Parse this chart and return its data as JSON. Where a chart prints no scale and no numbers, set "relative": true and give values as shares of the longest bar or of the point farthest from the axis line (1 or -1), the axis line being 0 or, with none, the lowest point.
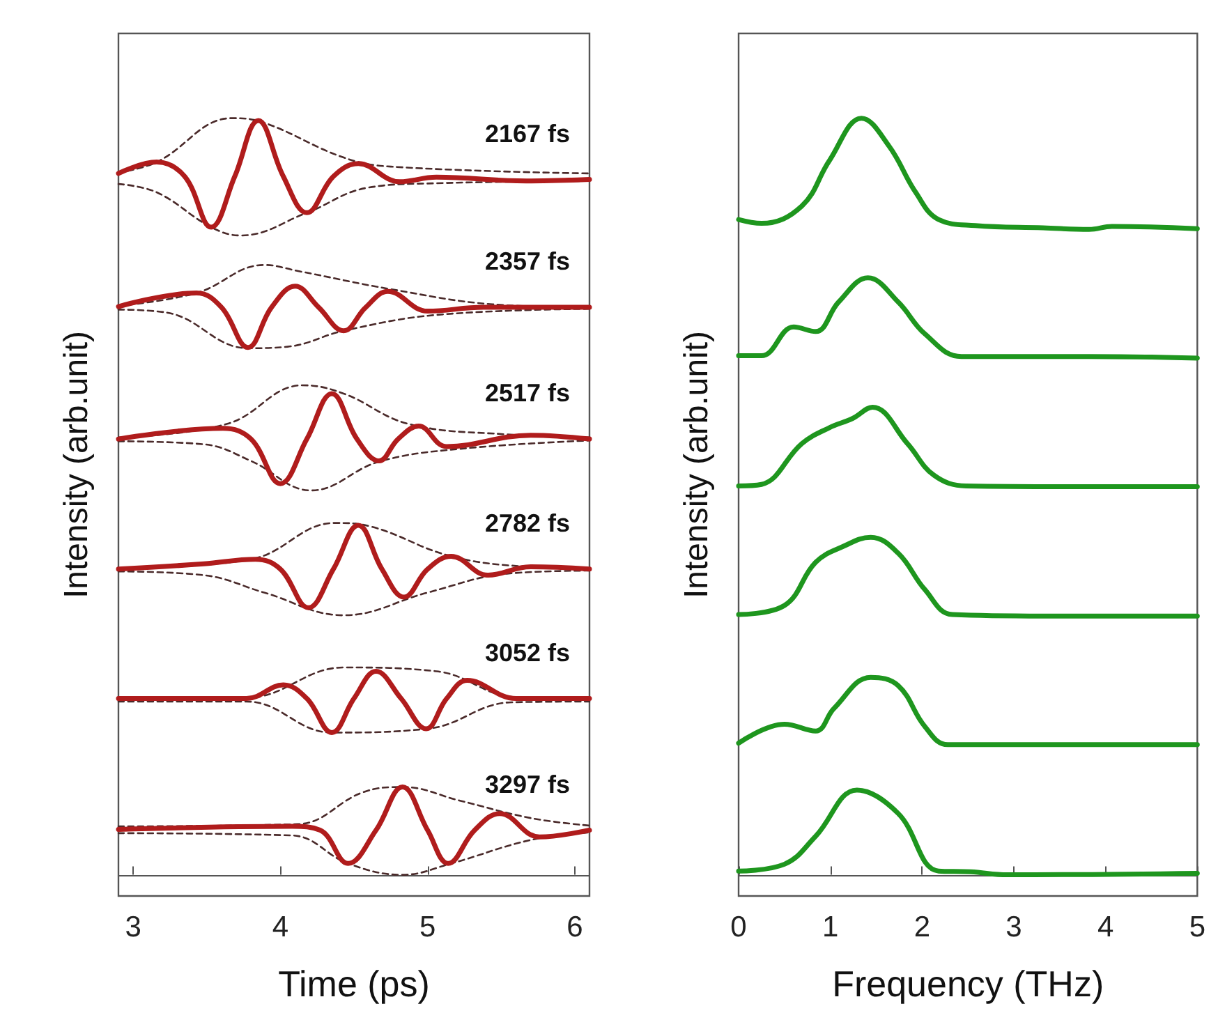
{
  "chart_data": [
    {
      "type": "line",
      "xlabel": "Time (ps)",
      "ylabel": "Intensity (arb.unit)",
      "xlim": [
        2.9,
        6.1
      ],
      "xticks": [
        3,
        4,
        5,
        6
      ],
      "relative": true,
      "legend": false,
      "grid": false,
      "series": [
        {
          "name": "2167 fs",
          "color": "#b01c1c",
          "x": [
            2.9,
            3.16,
            3.35,
            3.53,
            3.69,
            3.85,
            4.02,
            4.18,
            4.36,
            4.53,
            4.81,
            5.06,
            5.67,
            6.1
          ],
          "values": [
            0.927,
            0.942,
            0.923,
            0.856,
            0.923,
            0.997,
            0.923,
            0.875,
            0.923,
            0.94,
            0.916,
            0.922,
            0.917,
            0.919
          ]
        },
        {
          "color": "#4a2a2a",
          "line_style": "dashed",
          "x": [
            2.9,
            3.16,
            3.67,
            3.89,
            4.43,
            4.75,
            6.1
          ],
          "values": [
            0.928,
            0.942,
            1.0,
            0.994,
            0.948,
            0.936,
            0.927
          ]
        },
        {
          "color": "#4a2a2a",
          "line_style": "dashed",
          "x": [
            2.9,
            3.16,
            3.53,
            3.73,
            4.18,
            4.59,
            5.06,
            6.1
          ],
          "values": [
            0.913,
            0.902,
            0.856,
            0.845,
            0.875,
            0.908,
            0.914,
            0.917
          ]
        },
        {
          "name": "2357 fs",
          "color": "#b01c1c",
          "x": [
            2.9,
            3.43,
            3.6,
            3.78,
            3.94,
            4.1,
            4.26,
            4.43,
            4.58,
            4.73,
            5.0,
            5.38,
            6.1
          ],
          "values": [
            0.751,
            0.769,
            0.75,
            0.697,
            0.75,
            0.778,
            0.75,
            0.719,
            0.75,
            0.771,
            0.745,
            0.75,
            0.75
          ]
        },
        {
          "color": "#4a2a2a",
          "line_style": "dashed",
          "x": [
            2.9,
            3.43,
            3.89,
            4.12,
            4.75,
            5.44,
            6.1
          ],
          "values": [
            0.752,
            0.769,
            0.806,
            0.798,
            0.774,
            0.754,
            0.75
          ]
        },
        {
          "color": "#4a2a2a",
          "line_style": "dashed",
          "x": [
            2.9,
            3.23,
            3.78,
            4.05,
            4.43,
            5.06,
            6.1
          ],
          "values": [
            0.747,
            0.743,
            0.696,
            0.698,
            0.719,
            0.74,
            0.748
          ]
        },
        {
          "name": "2517 fs",
          "color": "#b01c1c",
          "x": [
            2.9,
            3.61,
            3.8,
            4.0,
            4.18,
            4.35,
            4.52,
            4.67,
            4.8,
            4.94,
            5.13,
            5.7,
            6.1
          ],
          "values": [
            0.576,
            0.59,
            0.576,
            0.517,
            0.576,
            0.636,
            0.576,
            0.547,
            0.576,
            0.593,
            0.566,
            0.581,
            0.576
          ]
        },
        {
          "color": "#4a2a2a",
          "line_style": "dashed",
          "x": [
            2.9,
            3.64,
            4.15,
            4.43,
            4.87,
            5.54,
            6.1
          ],
          "values": [
            0.578,
            0.596,
            0.647,
            0.636,
            0.596,
            0.582,
            0.578
          ]
        },
        {
          "color": "#4a2a2a",
          "line_style": "dashed",
          "x": [
            2.9,
            3.48,
            3.8,
            4.21,
            4.67,
            5.22,
            6.1
          ],
          "values": [
            0.573,
            0.569,
            0.547,
            0.508,
            0.546,
            0.563,
            0.574
          ]
        },
        {
          "name": "2782 fs",
          "color": "#b01c1c",
          "x": [
            2.9,
            3.48,
            3.83,
            4.0,
            4.19,
            4.36,
            4.53,
            4.69,
            4.84,
            5.0,
            5.16,
            5.41,
            5.7,
            6.1
          ],
          "values": [
            0.404,
            0.411,
            0.417,
            0.404,
            0.353,
            0.404,
            0.462,
            0.404,
            0.367,
            0.404,
            0.421,
            0.396,
            0.407,
            0.404
          ]
        },
        {
          "color": "#4a2a2a",
          "line_style": "dashed",
          "x": [
            2.9,
            3.8,
            4.37,
            4.62,
            5.16,
            5.7,
            6.1
          ],
          "values": [
            0.405,
            0.417,
            0.465,
            0.46,
            0.421,
            0.407,
            0.405
          ]
        },
        {
          "color": "#4a2a2a",
          "line_style": "dashed",
          "x": [
            2.9,
            3.48,
            3.89,
            4.43,
            5.0,
            5.54,
            6.1
          ],
          "values": [
            0.401,
            0.396,
            0.373,
            0.343,
            0.373,
            0.398,
            0.402
          ]
        },
        {
          "name": "3052 fs",
          "color": "#b01c1c",
          "x": [
            2.9,
            3.77,
            4.02,
            4.18,
            4.35,
            4.5,
            4.65,
            4.82,
            4.99,
            5.13,
            5.27,
            5.6,
            6.1
          ],
          "values": [
            0.233,
            0.233,
            0.251,
            0.233,
            0.188,
            0.233,
            0.269,
            0.233,
            0.193,
            0.233,
            0.257,
            0.233,
            0.233
          ]
        },
        {
          "color": "#4a2a2a",
          "line_style": "dashed",
          "x": [
            2.9,
            3.77,
            4.43,
            5.06,
            5.6,
            6.1
          ],
          "values": [
            0.234,
            0.234,
            0.274,
            0.269,
            0.235,
            0.234
          ]
        },
        {
          "color": "#4a2a2a",
          "line_style": "dashed",
          "x": [
            2.9,
            3.77,
            4.35,
            5.0,
            5.57,
            6.1
          ],
          "values": [
            0.229,
            0.229,
            0.188,
            0.193,
            0.228,
            0.229
          ]
        },
        {
          "name": "3297 fs",
          "color": "#b01c1c",
          "x": [
            2.9,
            4.08,
            4.27,
            4.46,
            4.65,
            4.83,
            5.0,
            5.14,
            5.32,
            5.49,
            5.76,
            6.1
          ],
          "values": [
            0.06,
            0.064,
            0.059,
            0.015,
            0.059,
            0.116,
            0.059,
            0.015,
            0.059,
            0.081,
            0.05,
            0.059
          ]
        },
        {
          "color": "#4a2a2a",
          "line_style": "dashed",
          "x": [
            2.9,
            4.12,
            4.56,
            4.83,
            5.22,
            5.7,
            6.1
          ],
          "values": [
            0.064,
            0.067,
            0.109,
            0.116,
            0.098,
            0.075,
            0.065
          ]
        },
        {
          "color": "#4a2a2a",
          "line_style": "dashed",
          "x": [
            2.9,
            4.08,
            4.46,
            4.83,
            5.16,
            5.7,
            6.1
          ],
          "values": [
            0.055,
            0.052,
            0.015,
            0.0,
            0.015,
            0.046,
            0.056
          ]
        }
      ]
    },
    {
      "type": "line",
      "xlabel": "Frequency (THz)",
      "ylabel": "Intensity (arb.unit)",
      "xlim": [
        0,
        5
      ],
      "xticks": [
        0,
        1,
        2,
        3,
        4,
        5
      ],
      "relative": true,
      "legend": false,
      "grid": false,
      "series": [
        {
          "color": "#1e961e",
          "x": [
            0,
            0.25,
            0.69,
            0.99,
            1.34,
            1.64,
            1.93,
            2.18,
            2.58,
            3.32,
            3.82,
            4.07,
            5
          ],
          "values": [
            0.866,
            0.861,
            0.884,
            0.944,
            1.0,
            0.963,
            0.902,
            0.866,
            0.858,
            0.855,
            0.853,
            0.857,
            0.854
          ]
        },
        {
          "color": "#1e961e",
          "x": [
            0,
            0.25,
            0.6,
            0.84,
            1.09,
            1.41,
            1.74,
            2.03,
            2.43,
            3.82,
            5
          ],
          "values": [
            0.686,
            0.686,
            0.724,
            0.718,
            0.757,
            0.789,
            0.757,
            0.715,
            0.685,
            0.685,
            0.683
          ]
        },
        {
          "color": "#1e961e",
          "x": [
            0,
            0.25,
            0.69,
            0.99,
            1.24,
            1.46,
            1.84,
            2.13,
            2.48,
            3.82,
            5
          ],
          "values": [
            0.514,
            0.516,
            0.57,
            0.591,
            0.603,
            0.618,
            0.57,
            0.528,
            0.514,
            0.513,
            0.513
          ]
        },
        {
          "color": "#1e961e",
          "x": [
            0,
            0.5,
            0.84,
            1.14,
            1.44,
            1.74,
            2.03,
            2.33,
            3.32,
            5
          ],
          "values": [
            0.344,
            0.356,
            0.413,
            0.434,
            0.446,
            0.425,
            0.377,
            0.344,
            0.342,
            0.342
          ]
        },
        {
          "color": "#1e961e",
          "x": [
            0,
            0.5,
            0.84,
            1.04,
            1.44,
            1.74,
            2.03,
            2.28,
            3.82,
            5
          ],
          "values": [
            0.174,
            0.199,
            0.19,
            0.22,
            0.261,
            0.25,
            0.196,
            0.172,
            0.172,
            0.172
          ]
        },
        {
          "color": "#1e961e",
          "x": [
            0,
            0.5,
            0.84,
            1.29,
            1.74,
            2.18,
            2.53,
            2.93,
            5
          ],
          "values": [
            0.005,
            0.014,
            0.051,
            0.112,
            0.081,
            0.005,
            0.004,
            0.0,
            0.002
          ]
        }
      ]
    }
  ]
}
